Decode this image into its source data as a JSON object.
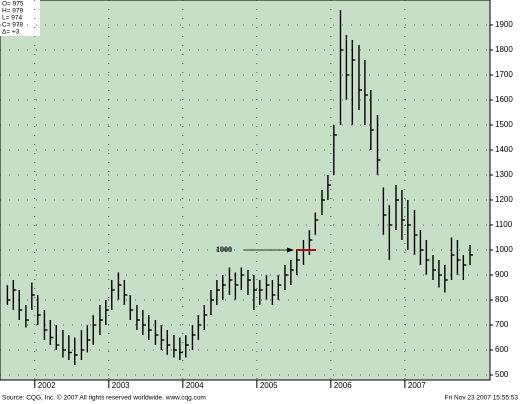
{
  "chart_data": {
    "type": "ohlc",
    "info": [
      "O= 975",
      "H= 979",
      "L= 974",
      "C= 978",
      "Δ= +3"
    ],
    "x": [
      2001.63,
      2001.71,
      2001.79,
      2001.88,
      2001.96,
      2002.04,
      2002.13,
      2002.21,
      2002.29,
      2002.38,
      2002.46,
      2002.54,
      2002.63,
      2002.71,
      2002.79,
      2002.88,
      2002.96,
      2003.04,
      2003.13,
      2003.21,
      2003.29,
      2003.38,
      2003.46,
      2003.54,
      2003.63,
      2003.71,
      2003.79,
      2003.88,
      2003.96,
      2004.04,
      2004.13,
      2004.21,
      2004.29,
      2004.38,
      2004.46,
      2004.54,
      2004.63,
      2004.71,
      2004.79,
      2004.88,
      2004.96,
      2005.04,
      2005.13,
      2005.21,
      2005.29,
      2005.38,
      2005.46,
      2005.54,
      2005.63,
      2005.71,
      2005.79,
      2005.88,
      2005.96,
      2006.04,
      2006.13,
      2006.21,
      2006.29,
      2006.38,
      2006.46,
      2006.54,
      2006.63,
      2006.71,
      2006.79,
      2006.88,
      2006.96,
      2007.04,
      2007.13,
      2007.21,
      2007.29,
      2007.38,
      2007.46,
      2007.54,
      2007.63,
      2007.71,
      2007.79,
      2007.88
    ],
    "high": [
      860,
      880,
      840,
      780,
      870,
      820,
      760,
      720,
      700,
      680,
      660,
      650,
      680,
      700,
      740,
      780,
      800,
      880,
      910,
      880,
      820,
      780,
      760,
      740,
      720,
      700,
      680,
      660,
      650,
      660,
      700,
      740,
      780,
      840,
      880,
      900,
      930,
      910,
      930,
      920,
      900,
      880,
      900,
      880,
      900,
      940,
      960,
      1000,
      1040,
      1080,
      1150,
      1240,
      1300,
      1500,
      1960,
      1860,
      1840,
      1820,
      1760,
      1640,
      1540,
      1250,
      1180,
      1260,
      1240,
      1200,
      1160,
      1080,
      1040,
      980,
      960,
      940,
      1050,
      1040,
      980,
      1020
    ],
    "low": [
      780,
      760,
      720,
      690,
      760,
      700,
      640,
      620,
      600,
      570,
      560,
      540,
      560,
      590,
      620,
      660,
      700,
      760,
      800,
      780,
      720,
      680,
      660,
      640,
      620,
      600,
      580,
      570,
      560,
      570,
      600,
      640,
      680,
      740,
      780,
      800,
      820,
      800,
      840,
      820,
      760,
      780,
      800,
      780,
      800,
      840,
      860,
      900,
      940,
      980,
      1060,
      1140,
      1200,
      1300,
      1500,
      1600,
      1500,
      1560,
      1500,
      1400,
      1300,
      1060,
      960,
      1080,
      1040,
      1000,
      980,
      940,
      900,
      880,
      850,
      830,
      880,
      900,
      880,
      940
    ],
    "close": [
      800,
      840,
      760,
      720,
      820,
      740,
      680,
      650,
      620,
      600,
      590,
      580,
      600,
      640,
      700,
      720,
      760,
      840,
      860,
      820,
      760,
      720,
      700,
      680,
      660,
      640,
      620,
      600,
      590,
      620,
      660,
      700,
      740,
      800,
      840,
      860,
      880,
      860,
      900,
      880,
      840,
      840,
      860,
      820,
      860,
      900,
      920,
      960,
      1000,
      1040,
      1120,
      1200,
      1260,
      1460,
      1800,
      1700,
      1760,
      1640,
      1620,
      1480,
      1360,
      1140,
      1100,
      1200,
      1120,
      1100,
      1060,
      1000,
      960,
      920,
      900,
      880,
      980,
      960,
      940,
      980
    ],
    "xlim": [
      2001.53,
      2008.15
    ],
    "xticks": [
      2002,
      2003,
      2004,
      2005,
      2006,
      2007
    ],
    "ylim": [
      480,
      2000
    ],
    "yticks": [
      500,
      600,
      700,
      800,
      900,
      1000,
      1100,
      1200,
      1300,
      1400,
      1500,
      1600,
      1700,
      1800,
      1900
    ],
    "grid": true,
    "annotation": {
      "level": 1000,
      "color": "#aa1111"
    },
    "source": "Source: CQG, Inc. © 2007 All rights reserved worldwide. www.cqg.com",
    "timestamp": "Fri Nov 23 2007 15:55:53"
  }
}
